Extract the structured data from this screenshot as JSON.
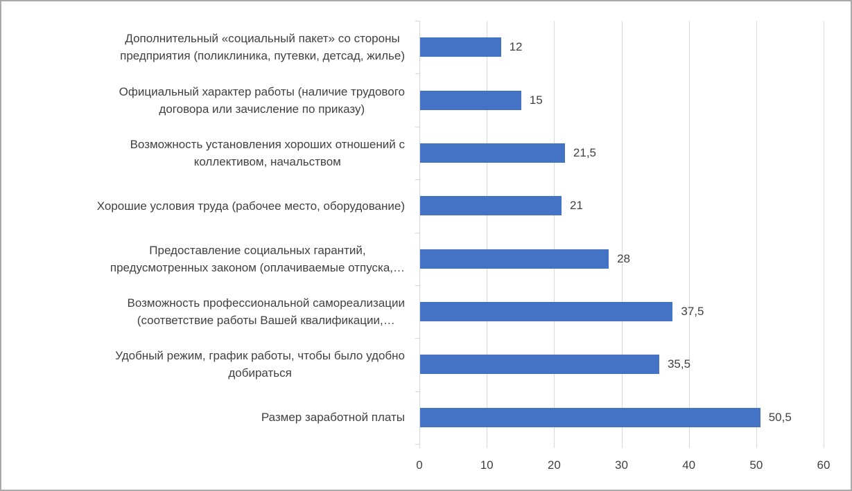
{
  "window": {
    "background": "#FFFFFF",
    "border_color": "#A9A9A9"
  },
  "chart_data": {
    "type": "bar",
    "orientation": "horizontal",
    "title": "",
    "xlabel": "",
    "ylabel": "",
    "xlim": [
      0,
      60
    ],
    "grid": "vertical",
    "legend": "none",
    "bar_color": "#4472C4",
    "gridline_color": "#D9D9D9",
    "text_color": "#404040",
    "categories": [
      "Дополнительный «социальный пакет» со стороны\nпредприятия (поликлиника, путевки, детсад, жилье)",
      "Официальный характер работы (наличие трудового\nдоговора или зачисление по приказу)",
      "Возможность установления хороших отношений с\nколлективом, начальством",
      "Хорошие условия труда (рабочее место, оборудование)",
      "Предоставление социальных гарантий,\nпредусмотренных законом (оплачиваемые отпуска,…",
      "Возможность профессиональной самореализации\n(соответствие работы Вашей квалификации,…",
      "Удобный режим, график работы, чтобы было удобно\nдобираться",
      "Размер заработной платы"
    ],
    "values": [
      12,
      15,
      21.5,
      21,
      28,
      37.5,
      35.5,
      50.5
    ],
    "value_labels": [
      "12",
      "15",
      "21,5",
      "21",
      "28",
      "37,5",
      "35,5",
      "50,5"
    ],
    "x_ticks": [
      0,
      10,
      20,
      30,
      40,
      50,
      60
    ],
    "x_tick_labels": [
      "0",
      "10",
      "20",
      "30",
      "40",
      "50",
      "60"
    ]
  }
}
